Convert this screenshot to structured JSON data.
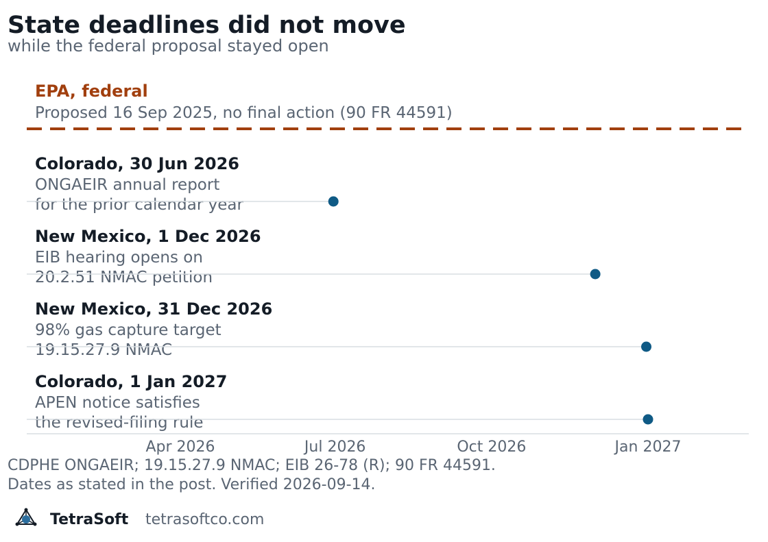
{
  "title": "State deadlines did not move",
  "subtitle": "while the federal proposal stayed open",
  "federal": {
    "label": "EPA, federal",
    "detail": "Proposed 16 Sep 2025, no final action (90 FR 44591)"
  },
  "footnote": [
    "CDPHE ONGAEIR; 19.15.27.9 NMAC; EIB 26-78 (R); 90 FR 44591.",
    "Dates as stated in the post. Verified 2026-09-14."
  ],
  "brand": {
    "name": "TetraSoft",
    "url": "tetrasoftco.com",
    "logo_icon": "tetrahedron-logo-icon"
  },
  "chart_data": {
    "type": "scatter",
    "x_axis": {
      "type": "date",
      "ticks": [
        "2026-04-01",
        "2026-07-01",
        "2026-10-01",
        "2027-01-01"
      ],
      "tick_labels": [
        "Apr 2026",
        "Jul 2026",
        "Oct 2026",
        "Jan 2027"
      ],
      "xlim": [
        "2026-01-01",
        "2027-04-01"
      ]
    },
    "points": [
      {
        "title": "Colorado, 30 Jun 2026",
        "desc": [
          "ONGAEIR annual report",
          "for the prior calendar year"
        ],
        "date": "2026-06-30"
      },
      {
        "title": "New Mexico, 1 Dec 2026",
        "desc": [
          "EIB hearing opens on",
          "20.2.51 NMAC petition"
        ],
        "date": "2026-12-01"
      },
      {
        "title": "New Mexico, 31 Dec 2026",
        "desc": [
          "98% gas capture target",
          "19.15.27.9 NMAC"
        ],
        "date": "2026-12-31"
      },
      {
        "title": "Colorado, 1 Jan 2027",
        "desc": [
          "APEN notice satisfies",
          "the revised-filing rule"
        ],
        "date": "2027-01-01"
      }
    ],
    "grid": false,
    "colors": {
      "point": "#0f5a85",
      "federal_line": "#a13f0e",
      "row_line": "#d8dde2",
      "axis_line": "#d8dde2"
    }
  }
}
